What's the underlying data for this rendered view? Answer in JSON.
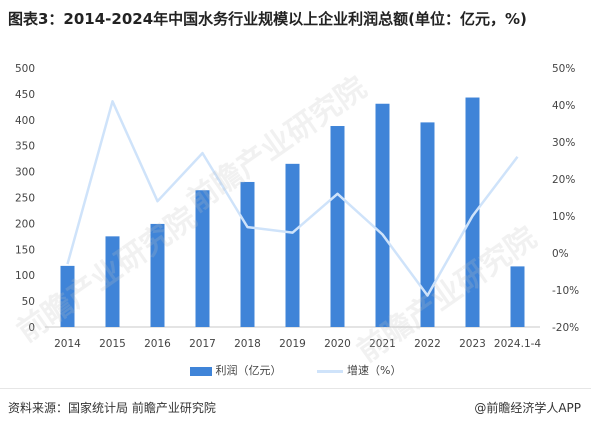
{
  "title": "图表3：2014-2024年中国水务行业规模以上企业利润总额(单位：亿元，%)",
  "source": "资料来源：国家统计局 前瞻产业研究院",
  "brand": "@前瞻经济学人APP",
  "watermark": "前瞻产业研究院",
  "colors": {
    "bar": "#3f84d8",
    "line": "#cfe3fa",
    "axis_text": "#444444"
  },
  "chart_data": {
    "type": "bar",
    "categories": [
      "2014",
      "2015",
      "2016",
      "2017",
      "2018",
      "2019",
      "2020",
      "2021",
      "2022",
      "2023",
      "2024.1-4"
    ],
    "series": [
      {
        "name": "利润（亿元）",
        "type": "bar",
        "axis": "left",
        "values": [
          118,
          175,
          199,
          264,
          280,
          315,
          388,
          431,
          395,
          443,
          117
        ]
      },
      {
        "name": "增速（%）",
        "type": "line",
        "axis": "right",
        "values": [
          -3,
          41,
          14,
          27,
          7,
          5.5,
          16,
          5,
          -11.5,
          10,
          26
        ]
      }
    ],
    "ylim_left": [
      0,
      500
    ],
    "yticks_left": [
      "0",
      "50",
      "100",
      "150",
      "200",
      "250",
      "300",
      "350",
      "400",
      "450",
      "500"
    ],
    "ylim_right": [
      -20,
      50
    ],
    "yticks_right": [
      "-20%",
      "-10%",
      "0%",
      "10%",
      "20%",
      "30%",
      "40%",
      "50%"
    ],
    "legend_position": "bottom",
    "grid": false
  }
}
